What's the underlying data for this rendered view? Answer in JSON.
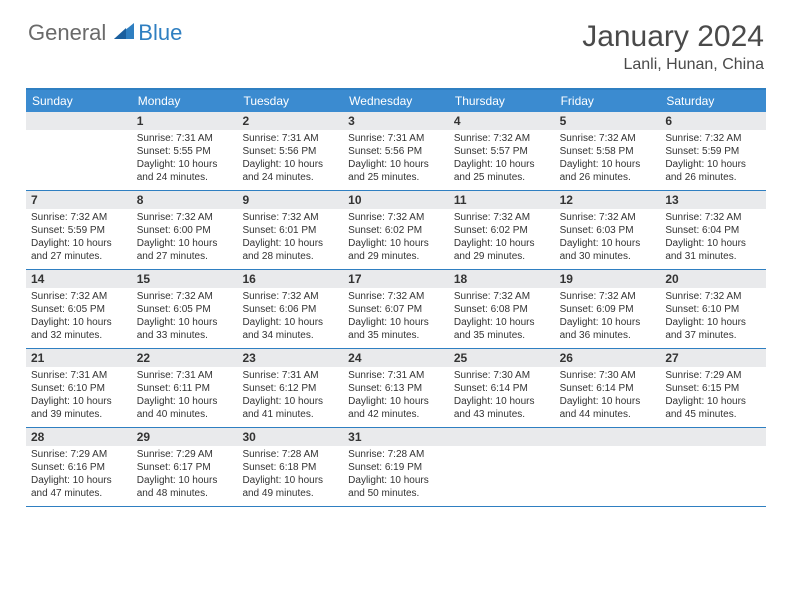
{
  "brand": {
    "part1": "General",
    "part2": "Blue"
  },
  "title": "January 2024",
  "location": "Lanli, Hunan, China",
  "colors": {
    "header_bg": "#3b8bd0",
    "header_text": "#ffffff",
    "rule": "#2f7fc1",
    "daynum_bg": "#e9eaec",
    "text": "#333333",
    "logo_gray": "#6a6a6a",
    "logo_blue": "#2f7fc1"
  },
  "weekdays": [
    "Sunday",
    "Monday",
    "Tuesday",
    "Wednesday",
    "Thursday",
    "Friday",
    "Saturday"
  ],
  "first_weekday_index": 1,
  "days": [
    {
      "n": 1,
      "sunrise": "7:31 AM",
      "sunset": "5:55 PM",
      "daylight": "10 hours and 24 minutes."
    },
    {
      "n": 2,
      "sunrise": "7:31 AM",
      "sunset": "5:56 PM",
      "daylight": "10 hours and 24 minutes."
    },
    {
      "n": 3,
      "sunrise": "7:31 AM",
      "sunset": "5:56 PM",
      "daylight": "10 hours and 25 minutes."
    },
    {
      "n": 4,
      "sunrise": "7:32 AM",
      "sunset": "5:57 PM",
      "daylight": "10 hours and 25 minutes."
    },
    {
      "n": 5,
      "sunrise": "7:32 AM",
      "sunset": "5:58 PM",
      "daylight": "10 hours and 26 minutes."
    },
    {
      "n": 6,
      "sunrise": "7:32 AM",
      "sunset": "5:59 PM",
      "daylight": "10 hours and 26 minutes."
    },
    {
      "n": 7,
      "sunrise": "7:32 AM",
      "sunset": "5:59 PM",
      "daylight": "10 hours and 27 minutes."
    },
    {
      "n": 8,
      "sunrise": "7:32 AM",
      "sunset": "6:00 PM",
      "daylight": "10 hours and 27 minutes."
    },
    {
      "n": 9,
      "sunrise": "7:32 AM",
      "sunset": "6:01 PM",
      "daylight": "10 hours and 28 minutes."
    },
    {
      "n": 10,
      "sunrise": "7:32 AM",
      "sunset": "6:02 PM",
      "daylight": "10 hours and 29 minutes."
    },
    {
      "n": 11,
      "sunrise": "7:32 AM",
      "sunset": "6:02 PM",
      "daylight": "10 hours and 29 minutes."
    },
    {
      "n": 12,
      "sunrise": "7:32 AM",
      "sunset": "6:03 PM",
      "daylight": "10 hours and 30 minutes."
    },
    {
      "n": 13,
      "sunrise": "7:32 AM",
      "sunset": "6:04 PM",
      "daylight": "10 hours and 31 minutes."
    },
    {
      "n": 14,
      "sunrise": "7:32 AM",
      "sunset": "6:05 PM",
      "daylight": "10 hours and 32 minutes."
    },
    {
      "n": 15,
      "sunrise": "7:32 AM",
      "sunset": "6:05 PM",
      "daylight": "10 hours and 33 minutes."
    },
    {
      "n": 16,
      "sunrise": "7:32 AM",
      "sunset": "6:06 PM",
      "daylight": "10 hours and 34 minutes."
    },
    {
      "n": 17,
      "sunrise": "7:32 AM",
      "sunset": "6:07 PM",
      "daylight": "10 hours and 35 minutes."
    },
    {
      "n": 18,
      "sunrise": "7:32 AM",
      "sunset": "6:08 PM",
      "daylight": "10 hours and 35 minutes."
    },
    {
      "n": 19,
      "sunrise": "7:32 AM",
      "sunset": "6:09 PM",
      "daylight": "10 hours and 36 minutes."
    },
    {
      "n": 20,
      "sunrise": "7:32 AM",
      "sunset": "6:10 PM",
      "daylight": "10 hours and 37 minutes."
    },
    {
      "n": 21,
      "sunrise": "7:31 AM",
      "sunset": "6:10 PM",
      "daylight": "10 hours and 39 minutes."
    },
    {
      "n": 22,
      "sunrise": "7:31 AM",
      "sunset": "6:11 PM",
      "daylight": "10 hours and 40 minutes."
    },
    {
      "n": 23,
      "sunrise": "7:31 AM",
      "sunset": "6:12 PM",
      "daylight": "10 hours and 41 minutes."
    },
    {
      "n": 24,
      "sunrise": "7:31 AM",
      "sunset": "6:13 PM",
      "daylight": "10 hours and 42 minutes."
    },
    {
      "n": 25,
      "sunrise": "7:30 AM",
      "sunset": "6:14 PM",
      "daylight": "10 hours and 43 minutes."
    },
    {
      "n": 26,
      "sunrise": "7:30 AM",
      "sunset": "6:14 PM",
      "daylight": "10 hours and 44 minutes."
    },
    {
      "n": 27,
      "sunrise": "7:29 AM",
      "sunset": "6:15 PM",
      "daylight": "10 hours and 45 minutes."
    },
    {
      "n": 28,
      "sunrise": "7:29 AM",
      "sunset": "6:16 PM",
      "daylight": "10 hours and 47 minutes."
    },
    {
      "n": 29,
      "sunrise": "7:29 AM",
      "sunset": "6:17 PM",
      "daylight": "10 hours and 48 minutes."
    },
    {
      "n": 30,
      "sunrise": "7:28 AM",
      "sunset": "6:18 PM",
      "daylight": "10 hours and 49 minutes."
    },
    {
      "n": 31,
      "sunrise": "7:28 AM",
      "sunset": "6:19 PM",
      "daylight": "10 hours and 50 minutes."
    }
  ],
  "labels": {
    "sunrise": "Sunrise:",
    "sunset": "Sunset:",
    "daylight": "Daylight:"
  }
}
